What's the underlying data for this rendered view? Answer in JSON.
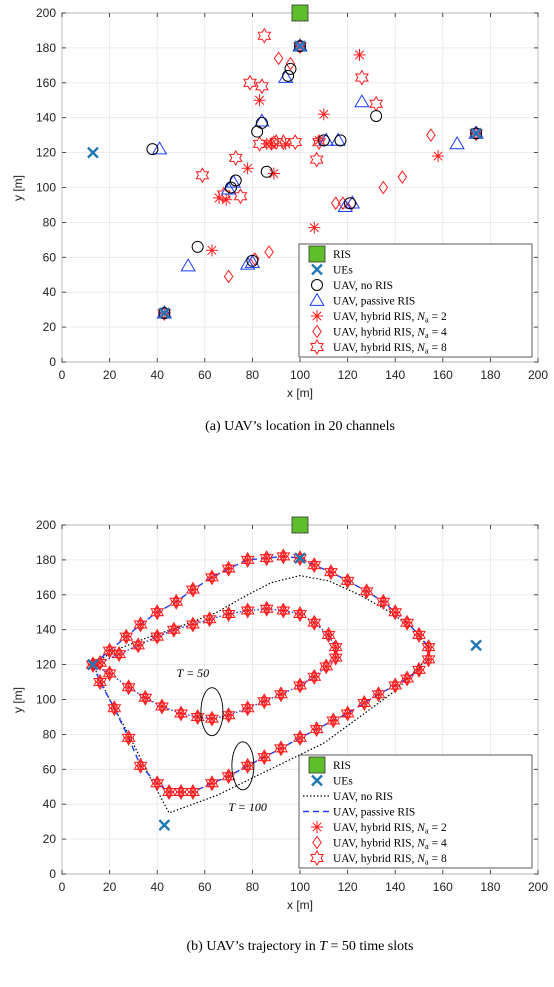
{
  "chart_data": [
    {
      "type": "scatter",
      "caption": "(a) UAV’s location in 20 channels",
      "xlabel": "x [m]",
      "ylabel": "y [m]",
      "xlim": [
        0,
        200
      ],
      "ylim": [
        0,
        200
      ],
      "xticks": [
        0,
        20,
        40,
        60,
        80,
        100,
        120,
        140,
        160,
        180,
        200
      ],
      "yticks": [
        0,
        20,
        40,
        60,
        80,
        100,
        120,
        140,
        160,
        180,
        200
      ],
      "grid": true,
      "legend_position": "bottom-right",
      "legend": [
        "RIS",
        "UEs",
        "UAV, no RIS",
        "UAV, passive RIS",
        "UAV, hybrid RIS, N_a = 2",
        "UAV, hybrid RIS, N_a = 4",
        "UAV, hybrid RIS, N_a = 8"
      ],
      "series": [
        {
          "name": "RIS",
          "marker": "square",
          "color": "#5fbf2a",
          "x": [
            100
          ],
          "y": [
            200
          ]
        },
        {
          "name": "UEs",
          "marker": "x",
          "color": "#1f77b4",
          "x": [
            13,
            43,
            100,
            174
          ],
          "y": [
            120,
            28,
            181,
            131
          ]
        },
        {
          "name": "UAV, no RIS",
          "marker": "circle",
          "color": "#000000",
          "x": [
            38,
            43,
            57,
            71,
            73,
            80,
            82,
            84,
            86,
            95,
            96,
            100,
            110,
            117,
            121,
            132,
            174
          ],
          "y": [
            122,
            28,
            66,
            100,
            104,
            58,
            132,
            137,
            109,
            164,
            168,
            181,
            127,
            127,
            91,
            141,
            131
          ]
        },
        {
          "name": "UAV, passive RIS",
          "marker": "triangle",
          "color": "#1a3cff",
          "x": [
            41,
            43,
            53,
            70,
            72,
            78,
            80,
            84,
            94,
            100,
            111,
            116,
            119,
            122,
            126,
            166,
            174
          ],
          "y": [
            122,
            28,
            55,
            99,
            103,
            56,
            57,
            138,
            163,
            181,
            127,
            127,
            89,
            91,
            149,
            125,
            131
          ]
        },
        {
          "name": "UAV, hybrid RIS, N_a = 2",
          "marker": "asterisk",
          "color": "#ff1a1a",
          "x": [
            43,
            63,
            66,
            69,
            78,
            83,
            86,
            88,
            89,
            94,
            100,
            106,
            108,
            110,
            125,
            158,
            174
          ],
          "y": [
            28,
            64,
            94,
            93,
            111,
            150,
            125,
            125,
            108,
            125,
            181,
            77,
            127,
            142,
            176,
            118,
            131
          ]
        },
        {
          "name": "UAV, hybrid RIS, N_a = 4",
          "marker": "diamond",
          "color": "#ff1a1a",
          "x": [
            43,
            70,
            81,
            87,
            88,
            89,
            91,
            96,
            100,
            115,
            118,
            122,
            135,
            143,
            155,
            174,
            100
          ],
          "y": [
            28,
            49,
            59,
            63,
            125,
            126,
            174,
            171,
            181,
            91,
            91,
            91,
            100,
            106,
            130,
            131,
            200
          ]
        },
        {
          "name": "UAV, hybrid RIS, N_a = 8",
          "marker": "hexagram",
          "color": "#ff1a1a",
          "x": [
            43,
            59,
            68,
            73,
            75,
            79,
            83,
            84,
            85,
            90,
            93,
            98,
            100,
            107,
            108,
            126,
            132,
            174,
            100
          ],
          "y": [
            28,
            107,
            96,
            117,
            95,
            160,
            125,
            158,
            187,
            126,
            126,
            126,
            181,
            116,
            126,
            163,
            148,
            131,
            200
          ]
        }
      ]
    },
    {
      "type": "line",
      "caption": "(b) UAV’s trajectory in T = 50 time slots",
      "xlabel": "x [m]",
      "ylabel": "y [m]",
      "xlim": [
        0,
        200
      ],
      "ylim": [
        0,
        200
      ],
      "xticks": [
        0,
        20,
        40,
        60,
        80,
        100,
        120,
        140,
        160,
        180,
        200
      ],
      "yticks": [
        0,
        20,
        40,
        60,
        80,
        100,
        120,
        140,
        160,
        180,
        200
      ],
      "grid": true,
      "legend_position": "bottom-right",
      "legend": [
        "RIS",
        "UEs",
        "UAV, no RIS",
        "UAV, passive RIS",
        "UAV, hybrid RIS, N_a = 2",
        "UAV, hybrid RIS, N_a = 4",
        "UAV, hybrid RIS, N_a = 8"
      ],
      "annotations": [
        {
          "text": "T = 50",
          "x": 62,
          "y": 95
        },
        {
          "text": "T = 100",
          "x": 75,
          "y": 62
        }
      ],
      "ris": {
        "x": [
          100
        ],
        "y": [
          200
        ]
      },
      "ues": {
        "x": [
          13,
          43,
          100,
          174
        ],
        "y": [
          120,
          28,
          181,
          131
        ]
      },
      "no_ris_path": {
        "x": [
          13,
          20,
          28,
          36,
          45,
          55,
          65,
          80,
          95,
          110,
          125,
          140,
          150,
          155,
          148,
          138,
          125,
          112,
          100,
          88,
          78,
          65,
          50,
          35,
          22,
          13
        ],
        "y": [
          120,
          100,
          80,
          58,
          35,
          40,
          45,
          55,
          65,
          75,
          90,
          105,
          118,
          128,
          140,
          150,
          160,
          168,
          171,
          167,
          160,
          150,
          142,
          135,
          128,
          120
        ]
      },
      "passive_outer": {
        "x": [
          13,
          16,
          22,
          28,
          33,
          40,
          45,
          50,
          55,
          63,
          70,
          78,
          85,
          92,
          100,
          107,
          114,
          120,
          127,
          133,
          140,
          145,
          150,
          154,
          154,
          150,
          145,
          140,
          135,
          128,
          120,
          113,
          106,
          100,
          93,
          86,
          78,
          70,
          63,
          55,
          48,
          40,
          33,
          27,
          20,
          13
        ],
        "y": [
          120,
          110,
          95,
          78,
          62,
          52,
          47,
          47,
          47,
          52,
          56,
          62,
          67,
          72,
          78,
          83,
          88,
          92,
          98,
          103,
          108,
          112,
          117,
          123,
          130,
          137,
          144,
          150,
          156,
          162,
          168,
          173,
          177,
          181,
          182,
          181,
          180,
          175,
          170,
          163,
          156,
          150,
          143,
          136,
          128,
          120
        ]
      },
      "passive_inner": {
        "x": [
          13,
          20,
          28,
          35,
          42,
          50,
          57,
          63,
          70,
          78,
          85,
          92,
          100,
          106,
          111,
          115,
          115,
          112,
          106,
          100,
          93,
          86,
          78,
          70,
          62,
          55,
          47,
          40,
          32,
          24,
          16,
          13
        ],
        "y": [
          120,
          115,
          107,
          101,
          96,
          92,
          90,
          89,
          91,
          95,
          99,
          103,
          108,
          113,
          119,
          124,
          130,
          137,
          144,
          149,
          151,
          152,
          151,
          149,
          146,
          143,
          140,
          136,
          131,
          126,
          121,
          120
        ]
      }
    }
  ]
}
